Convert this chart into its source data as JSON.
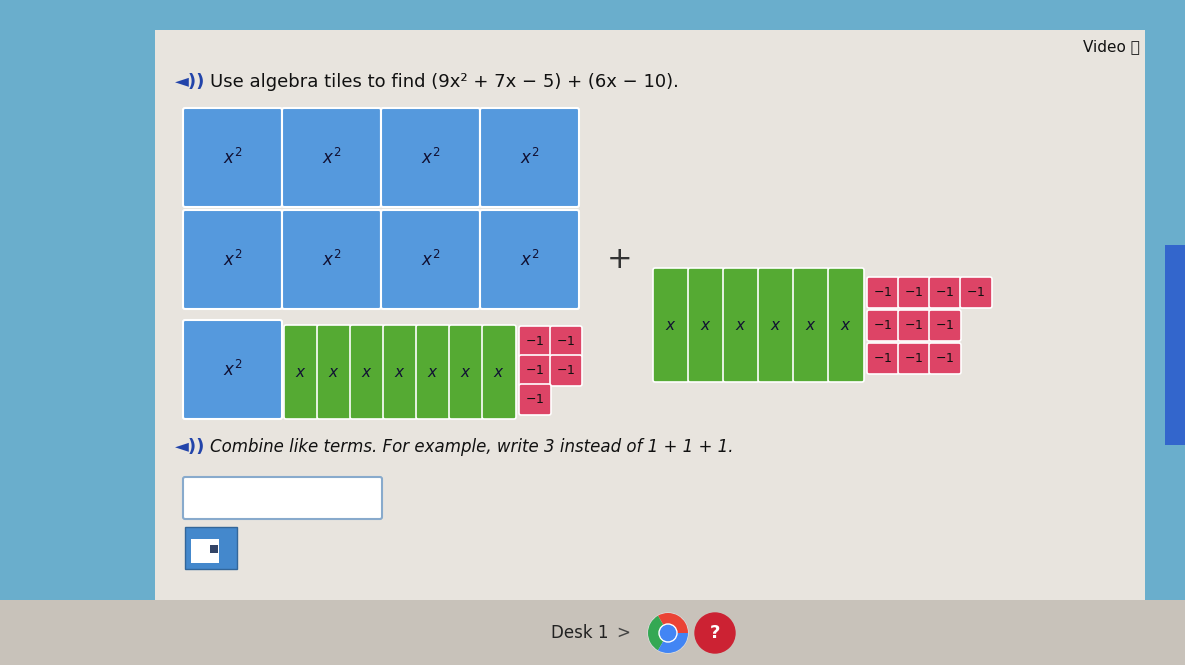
{
  "bg_outer": "#6aaecc",
  "bg_inner": "#e0dbd4",
  "blue_tile": "#5599dd",
  "green_tile": "#55aa33",
  "pink_tile": "#dd4466",
  "tile_text_color": "#111133",
  "title_text": "Use algebra tiles to find (9x² + 7x − 5) + (6x − 10).",
  "subtitle_text": "Combine like terms. For example, write 3 instead of 1 + 1 + 1.",
  "video_text": "Video ⓘ",
  "desk_text": "Desk 1",
  "panel_bg": "#dcd7d0",
  "white_panel_bg": "#e8e4de",
  "input_box_border": "#88aacc",
  "bottom_bar_color": "#c8c2ba",
  "right_sidebar_color": "#3366cc",
  "speaker_color": "#2244aa"
}
